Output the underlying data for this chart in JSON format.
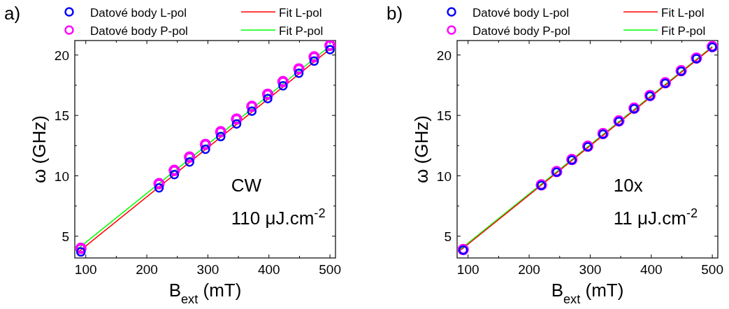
{
  "chart_data": [
    {
      "type": "scatter",
      "title": "a)",
      "xlabel": "B$_{ext}$ (mT)",
      "ylabel": "ω (GHz)",
      "annotations": [
        "CW",
        "110 μJ.cm$^{-2}$"
      ],
      "xlim": [
        82,
        509
      ],
      "ylim": [
        3.2,
        21.2
      ],
      "xticks": [
        100,
        {
          "value": 150,
          "label": null
        },
        200,
        {
          "value": 250,
          "label": null
        },
        300,
        {
          "value": 350,
          "label": null
        },
        400,
        {
          "value": 450,
          "label": null
        },
        500
      ],
      "yticks": [
        5,
        {
          "value": 7.5,
          "label": null
        },
        10,
        {
          "value": 12.5,
          "label": null
        },
        15,
        {
          "value": 17.5,
          "label": null
        },
        20
      ],
      "legend": "top",
      "grid": false,
      "series": [
        {
          "name": "Datové body L-pol",
          "marker": "circle",
          "color": "#0000ff",
          "x": [
            92,
            220,
            245,
            270,
            296,
            321,
            347,
            372,
            398,
            423,
            449,
            474,
            500
          ],
          "values": [
            3.7,
            9.0,
            10.1,
            11.15,
            12.2,
            13.25,
            14.3,
            15.35,
            16.4,
            17.45,
            18.5,
            19.5,
            20.45
          ]
        },
        {
          "name": "Datové body P-pol",
          "marker": "circle",
          "color": "#ff00ff",
          "x": [
            92,
            220,
            245,
            270,
            296,
            321,
            347,
            372,
            398,
            423,
            449,
            474,
            500
          ],
          "values": [
            4.0,
            9.35,
            10.45,
            11.55,
            12.6,
            13.65,
            14.7,
            15.75,
            16.75,
            17.8,
            18.85,
            19.85,
            20.8
          ]
        },
        {
          "name": "Fit L-pol",
          "type": "line",
          "line_style": "solid",
          "color": "#ff0000",
          "x": [
            88,
            500
          ],
          "values": [
            3.7,
            20.5
          ]
        },
        {
          "name": "Fit P-pol",
          "type": "line",
          "line_style": "solid",
          "color": "#00ff00",
          "x": [
            88,
            500
          ],
          "values": [
            4.0,
            20.75
          ]
        }
      ]
    },
    {
      "type": "scatter",
      "title": "b)",
      "xlabel": "B$_{ext}$ (mT)",
      "ylabel": "ω (GHz)",
      "annotations": [
        "10x",
        "11 μJ.cm$^{-2}$"
      ],
      "xlim": [
        82,
        509
      ],
      "ylim": [
        3.2,
        21.2
      ],
      "xticks": [
        100,
        {
          "value": 150,
          "label": null
        },
        200,
        {
          "value": 250,
          "label": null
        },
        300,
        {
          "value": 350,
          "label": null
        },
        400,
        {
          "value": 450,
          "label": null
        },
        500
      ],
      "yticks": [
        5,
        {
          "value": 7.5,
          "label": null
        },
        10,
        {
          "value": 12.5,
          "label": null
        },
        15,
        {
          "value": 17.5,
          "label": null
        },
        20
      ],
      "legend": "top",
      "grid": false,
      "series": [
        {
          "name": "Datové body L-pol",
          "marker": "circle",
          "color": "#0000ff",
          "x": [
            92,
            220,
            245,
            270,
            296,
            321,
            347,
            372,
            398,
            423,
            449,
            474,
            500
          ],
          "values": [
            3.85,
            9.2,
            10.3,
            11.3,
            12.4,
            13.45,
            14.5,
            15.55,
            16.6,
            17.65,
            18.65,
            19.7,
            20.65
          ]
        },
        {
          "name": "Datové body P-pol",
          "marker": "circle",
          "color": "#ff00ff",
          "x": [
            92,
            220,
            245,
            270,
            296,
            321,
            347,
            372,
            398,
            423,
            449,
            474,
            500
          ],
          "values": [
            3.9,
            9.25,
            10.35,
            11.35,
            12.45,
            13.5,
            14.55,
            15.6,
            16.65,
            17.7,
            18.7,
            19.75,
            20.7
          ]
        },
        {
          "name": "Fit L-pol",
          "type": "line",
          "line_style": "solid",
          "color": "#ff0000",
          "x": [
            88,
            500
          ],
          "values": [
            3.85,
            20.65
          ]
        },
        {
          "name": "Fit P-pol",
          "type": "line",
          "line_style": "solid",
          "color": "#00ff00",
          "x": [
            88,
            500
          ],
          "values": [
            3.95,
            20.7
          ]
        }
      ]
    }
  ]
}
